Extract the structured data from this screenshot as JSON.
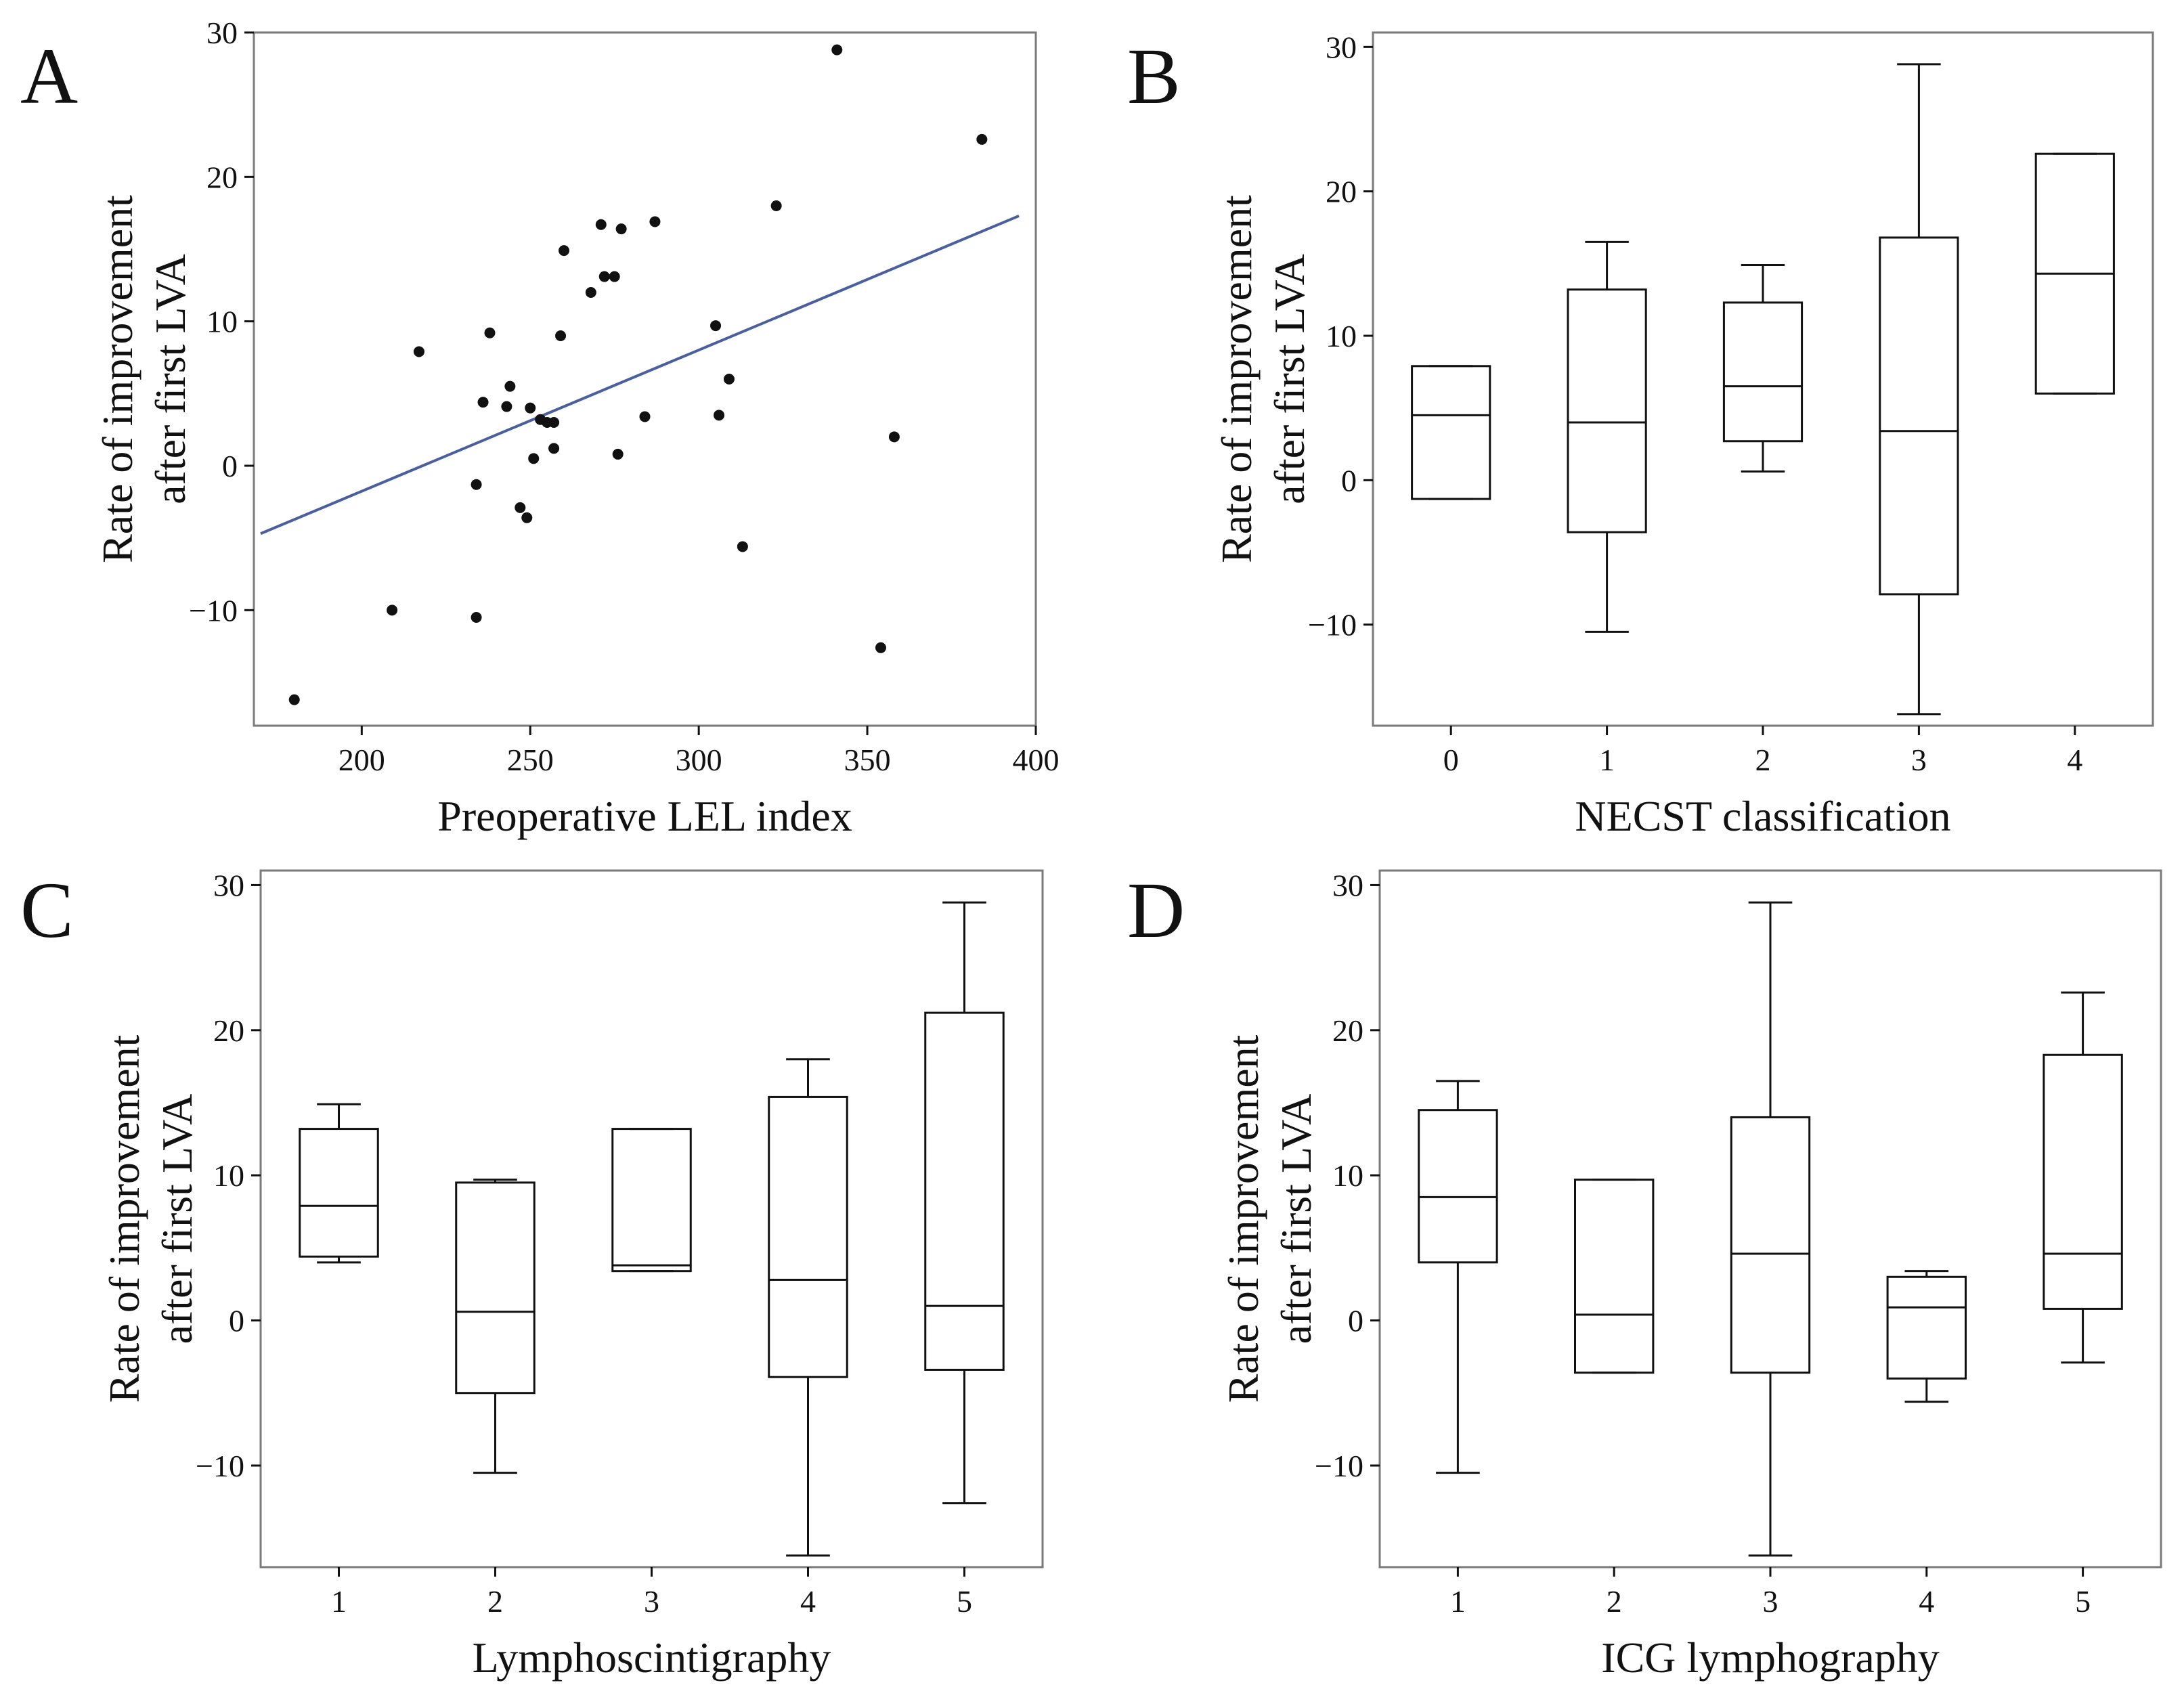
{
  "colors": {
    "line": "#4a5fa0",
    "ink": "#111111",
    "frame": "#7a7a7a",
    "point": "#111111"
  },
  "chart_data": [
    {
      "panel": "A",
      "type": "scatter",
      "xlabel": "Preoperative LEL index",
      "ylabel": [
        "Rate of improvement",
        "after first LVA"
      ],
      "xlim": [
        168,
        400
      ],
      "ylim": [
        -18,
        30
      ],
      "xticks": [
        200,
        250,
        300,
        350,
        400
      ],
      "yticks": [
        -10,
        0,
        10,
        20,
        30
      ],
      "points": [
        [
          180,
          -16.2
        ],
        [
          209,
          -10
        ],
        [
          217,
          7.9
        ],
        [
          234,
          -10.5
        ],
        [
          234,
          -1.3
        ],
        [
          236,
          4.4
        ],
        [
          238,
          9.2
        ],
        [
          243,
          4.1
        ],
        [
          244,
          5.5
        ],
        [
          247,
          -2.9
        ],
        [
          249,
          -3.6
        ],
        [
          250,
          4.0
        ],
        [
          251,
          0.5
        ],
        [
          253,
          3.2
        ],
        [
          255,
          3.0
        ],
        [
          257,
          1.2
        ],
        [
          257,
          3.0
        ],
        [
          259,
          9.0
        ],
        [
          260,
          14.9
        ],
        [
          268,
          12.0
        ],
        [
          271,
          16.7
        ],
        [
          272,
          13.1
        ],
        [
          275,
          13.1
        ],
        [
          276,
          0.8
        ],
        [
          277,
          16.4
        ],
        [
          284,
          3.4
        ],
        [
          287,
          16.9
        ],
        [
          305,
          9.7
        ],
        [
          306,
          3.5
        ],
        [
          309,
          6.0
        ],
        [
          313,
          -5.6
        ],
        [
          323,
          18.0
        ],
        [
          341,
          28.8
        ],
        [
          354,
          -12.6
        ],
        [
          358,
          2.0
        ],
        [
          384,
          22.6
        ]
      ],
      "fit_line": [
        [
          170,
          -4.7
        ],
        [
          395,
          17.3
        ]
      ]
    },
    {
      "panel": "B",
      "type": "box",
      "xlabel": "NECST classification",
      "ylabel": [
        "Rate of improvement",
        "after first LVA"
      ],
      "ylim": [
        -17,
        31
      ],
      "yticks": [
        -10,
        0,
        10,
        20,
        30
      ],
      "categories": [
        "0",
        "1",
        "2",
        "3",
        "4"
      ],
      "boxes": [
        {
          "label": "0",
          "whisker_low": -1.3,
          "q1": -1.3,
          "median": 4.5,
          "q3": 7.9,
          "whisker_high": 7.9
        },
        {
          "label": "1",
          "whisker_low": -10.5,
          "q1": -3.6,
          "median": 4.0,
          "q3": 13.2,
          "whisker_high": 16.5
        },
        {
          "label": "2",
          "whisker_low": 0.6,
          "q1": 2.7,
          "median": 6.5,
          "q3": 12.3,
          "whisker_high": 14.9
        },
        {
          "label": "3",
          "whisker_low": -16.2,
          "q1": -7.9,
          "median": 3.4,
          "q3": 16.8,
          "whisker_high": 28.8
        },
        {
          "label": "4",
          "whisker_low": 6.0,
          "q1": 6.0,
          "median": 14.3,
          "q3": 22.6,
          "whisker_high": 22.6
        }
      ]
    },
    {
      "panel": "C",
      "type": "box",
      "xlabel": "Lymphoscintigraphy",
      "ylabel": [
        "Rate of improvement",
        "after first LVA"
      ],
      "ylim": [
        -17,
        31
      ],
      "yticks": [
        -10,
        0,
        10,
        20,
        30
      ],
      "categories": [
        "1",
        "2",
        "3",
        "4",
        "5"
      ],
      "boxes": [
        {
          "label": "1",
          "whisker_low": 4.0,
          "q1": 4.4,
          "median": 7.9,
          "q3": 13.2,
          "whisker_high": 14.9
        },
        {
          "label": "2",
          "whisker_low": -10.5,
          "q1": -5.0,
          "median": 0.6,
          "q3": 9.5,
          "whisker_high": 9.7
        },
        {
          "label": "3",
          "whisker_low": 3.4,
          "q1": 3.4,
          "median": 3.8,
          "q3": 13.2,
          "whisker_high": 13.2
        },
        {
          "label": "4",
          "whisker_low": -16.2,
          "q1": -3.9,
          "median": 2.8,
          "q3": 15.4,
          "whisker_high": 18.0
        },
        {
          "label": "5",
          "whisker_low": -12.6,
          "q1": -3.4,
          "median": 1.0,
          "q3": 21.2,
          "whisker_high": 28.8
        }
      ]
    },
    {
      "panel": "D",
      "type": "box",
      "xlabel": "ICG lymphography",
      "ylabel": [
        "Rate of improvement",
        "after first LVA"
      ],
      "ylim": [
        -17,
        31
      ],
      "yticks": [
        -10,
        0,
        10,
        20,
        30
      ],
      "categories": [
        "1",
        "2",
        "3",
        "4",
        "5"
      ],
      "boxes": [
        {
          "label": "1",
          "whisker_low": -10.5,
          "q1": 4.0,
          "median": 8.5,
          "q3": 14.5,
          "whisker_high": 16.5
        },
        {
          "label": "2",
          "whisker_low": -3.6,
          "q1": -3.6,
          "median": 0.4,
          "q3": 9.7,
          "whisker_high": 9.7
        },
        {
          "label": "3",
          "whisker_low": -16.2,
          "q1": -3.6,
          "median": 4.6,
          "q3": 14.0,
          "whisker_high": 28.8
        },
        {
          "label": "4",
          "whisker_low": -5.6,
          "q1": -4.0,
          "median": 0.9,
          "q3": 3.0,
          "whisker_high": 3.4
        },
        {
          "label": "5",
          "whisker_low": -2.9,
          "q1": 0.8,
          "median": 4.6,
          "q3": 18.3,
          "whisker_high": 22.6
        }
      ]
    }
  ]
}
